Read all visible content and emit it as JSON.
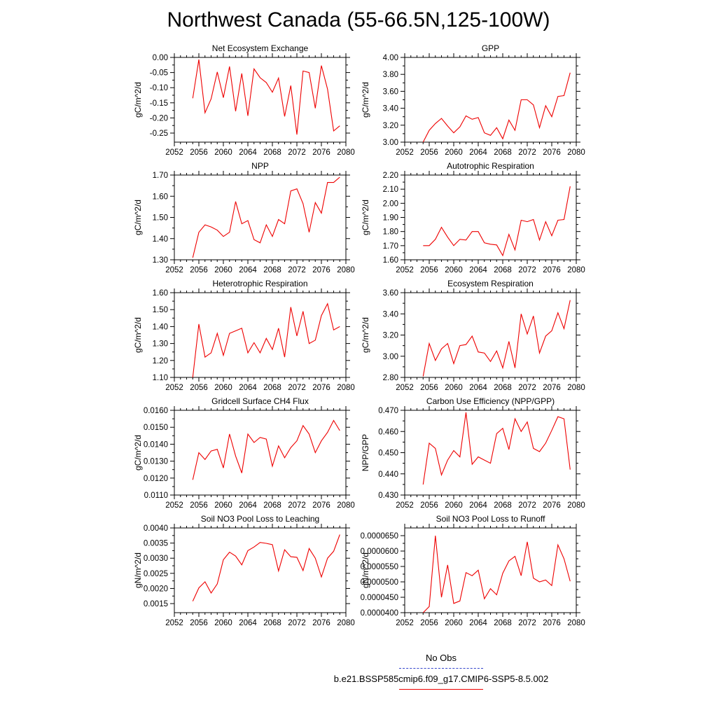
{
  "page": {
    "title": "Northwest Canada (55-66.5N,125-100W)"
  },
  "legend": {
    "obs_label": "No Obs",
    "obs_color": "#3344cc",
    "run_label": "b.e21.BSSP585cmip6.f09_g17.CMIP6-SSP5-8.5.002",
    "run_color": "#ee0000"
  },
  "chart_data": [
    {
      "type": "line",
      "title": "Net Ecosystem Exchange",
      "xlabel": "",
      "ylabel": "gC/m^2/d",
      "xlim": [
        2052,
        2080
      ],
      "ylim": [
        -0.28,
        0.0
      ],
      "xticks": [
        2052,
        2056,
        2060,
        2064,
        2068,
        2072,
        2076,
        2080
      ],
      "yticks": [
        "-0.25",
        "-0.20",
        "-0.15",
        "-0.10",
        "-0.05",
        "0.00"
      ],
      "series": [
        {
          "x": [
            2055,
            2056,
            2057,
            2058,
            2059,
            2060,
            2061,
            2062,
            2063,
            2064,
            2065,
            2066,
            2067,
            2068,
            2069,
            2070,
            2071,
            2072,
            2073,
            2074,
            2075,
            2076,
            2077,
            2078,
            2079
          ],
          "y": [
            -0.135,
            -0.007,
            -0.183,
            -0.137,
            -0.048,
            -0.133,
            -0.03,
            -0.178,
            -0.053,
            -0.193,
            -0.038,
            -0.067,
            -0.083,
            -0.115,
            -0.068,
            -0.195,
            -0.093,
            -0.255,
            -0.045,
            -0.05,
            -0.168,
            -0.027,
            -0.105,
            -0.243,
            -0.226
          ]
        }
      ]
    },
    {
      "type": "line",
      "title": "GPP",
      "xlabel": "",
      "ylabel": "gC/m^2/d",
      "xlim": [
        2052,
        2080
      ],
      "ylim": [
        3.0,
        4.0
      ],
      "xticks": [
        2052,
        2056,
        2060,
        2064,
        2068,
        2072,
        2076,
        2080
      ],
      "yticks": [
        "3.00",
        "3.20",
        "3.40",
        "3.60",
        "3.80",
        "4.00"
      ],
      "series": [
        {
          "x": [
            2055,
            2056,
            2057,
            2058,
            2059,
            2060,
            2061,
            2062,
            2063,
            2064,
            2065,
            2066,
            2067,
            2068,
            2069,
            2070,
            2071,
            2072,
            2073,
            2074,
            2075,
            2076,
            2077,
            2078,
            2079
          ],
          "y": [
            3.0,
            3.14,
            3.22,
            3.28,
            3.19,
            3.11,
            3.18,
            3.31,
            3.27,
            3.29,
            3.11,
            3.08,
            3.17,
            3.04,
            3.26,
            3.14,
            3.5,
            3.5,
            3.44,
            3.17,
            3.43,
            3.3,
            3.54,
            3.55,
            3.82
          ]
        }
      ]
    },
    {
      "type": "line",
      "title": "NPP",
      "xlabel": "",
      "ylabel": "gC/m^2/d",
      "xlim": [
        2052,
        2080
      ],
      "ylim": [
        1.3,
        1.7
      ],
      "xticks": [
        2052,
        2056,
        2060,
        2064,
        2068,
        2072,
        2076,
        2080
      ],
      "yticks": [
        "1.30",
        "1.40",
        "1.50",
        "1.60",
        "1.70"
      ],
      "series": [
        {
          "x": [
            2055,
            2056,
            2057,
            2058,
            2059,
            2060,
            2061,
            2062,
            2063,
            2064,
            2065,
            2066,
            2067,
            2068,
            2069,
            2070,
            2071,
            2072,
            2073,
            2074,
            2075,
            2076,
            2077,
            2078,
            2079
          ],
          "y": [
            1.31,
            1.43,
            1.465,
            1.455,
            1.44,
            1.41,
            1.43,
            1.575,
            1.47,
            1.485,
            1.395,
            1.38,
            1.465,
            1.41,
            1.49,
            1.47,
            1.625,
            1.635,
            1.565,
            1.43,
            1.57,
            1.52,
            1.665,
            1.665,
            1.69
          ]
        }
      ]
    },
    {
      "type": "line",
      "title": "Autotrophic Respiration",
      "xlabel": "",
      "ylabel": "gC/m^2/d",
      "xlim": [
        2052,
        2080
      ],
      "ylim": [
        1.6,
        2.2
      ],
      "xticks": [
        2052,
        2056,
        2060,
        2064,
        2068,
        2072,
        2076,
        2080
      ],
      "yticks": [
        "1.60",
        "1.70",
        "1.80",
        "1.90",
        "2.00",
        "2.10",
        "2.20"
      ],
      "series": [
        {
          "x": [
            2055,
            2056,
            2057,
            2058,
            2059,
            2060,
            2061,
            2062,
            2063,
            2064,
            2065,
            2066,
            2067,
            2068,
            2069,
            2070,
            2071,
            2072,
            2073,
            2074,
            2075,
            2076,
            2077,
            2078,
            2079
          ],
          "y": [
            1.7,
            1.7,
            1.745,
            1.83,
            1.76,
            1.7,
            1.745,
            1.74,
            1.8,
            1.8,
            1.72,
            1.71,
            1.705,
            1.63,
            1.78,
            1.67,
            1.88,
            1.87,
            1.885,
            1.74,
            1.87,
            1.77,
            1.88,
            1.885,
            2.12
          ]
        }
      ]
    },
    {
      "type": "line",
      "title": "Heterotrophic Respiration",
      "xlabel": "",
      "ylabel": "gC/m^2/d",
      "xlim": [
        2052,
        2080
      ],
      "ylim": [
        1.1,
        1.6
      ],
      "xticks": [
        2052,
        2056,
        2060,
        2064,
        2068,
        2072,
        2076,
        2080
      ],
      "yticks": [
        "1.10",
        "1.20",
        "1.30",
        "1.40",
        "1.50",
        "1.60"
      ],
      "series": [
        {
          "x": [
            2055,
            2056,
            2057,
            2058,
            2059,
            2060,
            2061,
            2062,
            2063,
            2064,
            2065,
            2066,
            2067,
            2068,
            2069,
            2070,
            2071,
            2072,
            2073,
            2074,
            2075,
            2076,
            2077,
            2078,
            2079
          ],
          "y": [
            1.1,
            1.415,
            1.22,
            1.245,
            1.36,
            1.23,
            1.36,
            1.375,
            1.39,
            1.245,
            1.305,
            1.245,
            1.33,
            1.265,
            1.39,
            1.22,
            1.515,
            1.345,
            1.49,
            1.3,
            1.32,
            1.465,
            1.535,
            1.38,
            1.4
          ]
        }
      ]
    },
    {
      "type": "line",
      "title": "Ecosystem Respiration",
      "xlabel": "",
      "ylabel": "gC/m^2/d",
      "xlim": [
        2052,
        2080
      ],
      "ylim": [
        2.8,
        3.6
      ],
      "xticks": [
        2052,
        2056,
        2060,
        2064,
        2068,
        2072,
        2076,
        2080
      ],
      "yticks": [
        "2.80",
        "3.00",
        "3.20",
        "3.40",
        "3.60"
      ],
      "series": [
        {
          "x": [
            2055,
            2056,
            2057,
            2058,
            2059,
            2060,
            2061,
            2062,
            2063,
            2064,
            2065,
            2066,
            2067,
            2068,
            2069,
            2070,
            2071,
            2072,
            2073,
            2074,
            2075,
            2076,
            2077,
            2078,
            2079
          ],
          "y": [
            2.81,
            3.12,
            2.96,
            3.07,
            3.12,
            2.93,
            3.1,
            3.11,
            3.19,
            3.04,
            3.03,
            2.95,
            3.05,
            2.89,
            3.14,
            2.89,
            3.4,
            3.21,
            3.38,
            3.03,
            3.19,
            3.24,
            3.41,
            3.26,
            3.53
          ]
        }
      ]
    },
    {
      "type": "line",
      "title": "Gridcell Surface CH4 Flux",
      "xlabel": "",
      "ylabel": "gC/m^2/d",
      "xlim": [
        2052,
        2080
      ],
      "ylim": [
        0.011,
        0.016
      ],
      "xticks": [
        2052,
        2056,
        2060,
        2064,
        2068,
        2072,
        2076,
        2080
      ],
      "yticks": [
        "0.0110",
        "0.0120",
        "0.0130",
        "0.0140",
        "0.0150",
        "0.0160"
      ],
      "series": [
        {
          "x": [
            2055,
            2056,
            2057,
            2058,
            2059,
            2060,
            2061,
            2062,
            2063,
            2064,
            2065,
            2066,
            2067,
            2068,
            2069,
            2070,
            2071,
            2072,
            2073,
            2074,
            2075,
            2076,
            2077,
            2078,
            2079
          ],
          "y": [
            0.0119,
            0.0135,
            0.0131,
            0.0136,
            0.0137,
            0.0126,
            0.0146,
            0.0133,
            0.0123,
            0.0146,
            0.0141,
            0.0144,
            0.0143,
            0.0127,
            0.0139,
            0.0132,
            0.0138,
            0.0142,
            0.0151,
            0.0146,
            0.0135,
            0.0142,
            0.0147,
            0.0154,
            0.0148
          ]
        }
      ]
    },
    {
      "type": "line",
      "title": "Carbon Use Efficiency (NPP/GPP)",
      "xlabel": "",
      "ylabel": "NPP/GPP",
      "xlim": [
        2052,
        2080
      ],
      "ylim": [
        0.43,
        0.47
      ],
      "xticks": [
        2052,
        2056,
        2060,
        2064,
        2068,
        2072,
        2076,
        2080
      ],
      "yticks": [
        "0.430",
        "0.440",
        "0.450",
        "0.460",
        "0.470"
      ],
      "series": [
        {
          "x": [
            2055,
            2056,
            2057,
            2058,
            2059,
            2060,
            2061,
            2062,
            2063,
            2064,
            2065,
            2066,
            2067,
            2068,
            2069,
            2070,
            2071,
            2072,
            2073,
            2074,
            2075,
            2076,
            2077,
            2078,
            2079
          ],
          "y": [
            0.435,
            0.4545,
            0.452,
            0.4395,
            0.4465,
            0.451,
            0.448,
            0.469,
            0.4445,
            0.448,
            0.4465,
            0.445,
            0.459,
            0.4615,
            0.4515,
            0.466,
            0.46,
            0.4645,
            0.452,
            0.4505,
            0.4545,
            0.4605,
            0.467,
            0.466,
            0.442
          ]
        }
      ]
    },
    {
      "type": "line",
      "title": "Soil NO3 Pool Loss to Leaching",
      "xlabel": "",
      "ylabel": "gN/m^2/d",
      "xlim": [
        2052,
        2080
      ],
      "ylim": [
        0.0012,
        0.004
      ],
      "xticks": [
        2052,
        2056,
        2060,
        2064,
        2068,
        2072,
        2076,
        2080
      ],
      "yticks": [
        "0.0015",
        "0.0020",
        "0.0025",
        "0.0030",
        "0.0035",
        "0.0040"
      ],
      "series": [
        {
          "x": [
            2055,
            2056,
            2057,
            2058,
            2059,
            2060,
            2061,
            2062,
            2063,
            2064,
            2065,
            2066,
            2067,
            2068,
            2069,
            2070,
            2071,
            2072,
            2073,
            2074,
            2075,
            2076,
            2077,
            2078,
            2079
          ],
          "y": [
            0.00158,
            0.00202,
            0.00222,
            0.00185,
            0.00215,
            0.00295,
            0.0032,
            0.00307,
            0.00278,
            0.00325,
            0.00337,
            0.00352,
            0.00349,
            0.00345,
            0.00258,
            0.00328,
            0.00305,
            0.00303,
            0.00259,
            0.00332,
            0.003,
            0.00238,
            0.003,
            0.00323,
            0.00378
          ]
        }
      ]
    },
    {
      "type": "line",
      "title": "Soil NO3 Pool Loss to Runoff",
      "xlabel": "",
      "ylabel": "gN/m^2/d",
      "xlim": [
        2052,
        2080
      ],
      "ylim": [
        4e-05,
        6.75e-05
      ],
      "xticks": [
        2052,
        2056,
        2060,
        2064,
        2068,
        2072,
        2076,
        2080
      ],
      "yticks": [
        "0.0000400",
        "0.0000450",
        "0.0000500",
        "0.0000550",
        "0.0000600",
        "0.0000650"
      ],
      "series": [
        {
          "x": [
            2055,
            2056,
            2057,
            2058,
            2059,
            2060,
            2061,
            2062,
            2063,
            2064,
            2065,
            2066,
            2067,
            2068,
            2069,
            2070,
            2071,
            2072,
            2073,
            2074,
            2075,
            2076,
            2077,
            2078,
            2079
          ],
          "y": [
            4e-05,
            4.2e-05,
            6.5e-05,
            4.5e-05,
            5.55e-05,
            4.3e-05,
            4.38e-05,
            5.3e-05,
            5.2e-05,
            5.38e-05,
            4.45e-05,
            4.78e-05,
            4.58e-05,
            5.28e-05,
            5.68e-05,
            5.83e-05,
            5.2e-05,
            6.3e-05,
            5.12e-05,
            5e-05,
            5.06e-05,
            4.88e-05,
            6.2e-05,
            5.75e-05,
            5.02e-05
          ]
        }
      ]
    }
  ]
}
